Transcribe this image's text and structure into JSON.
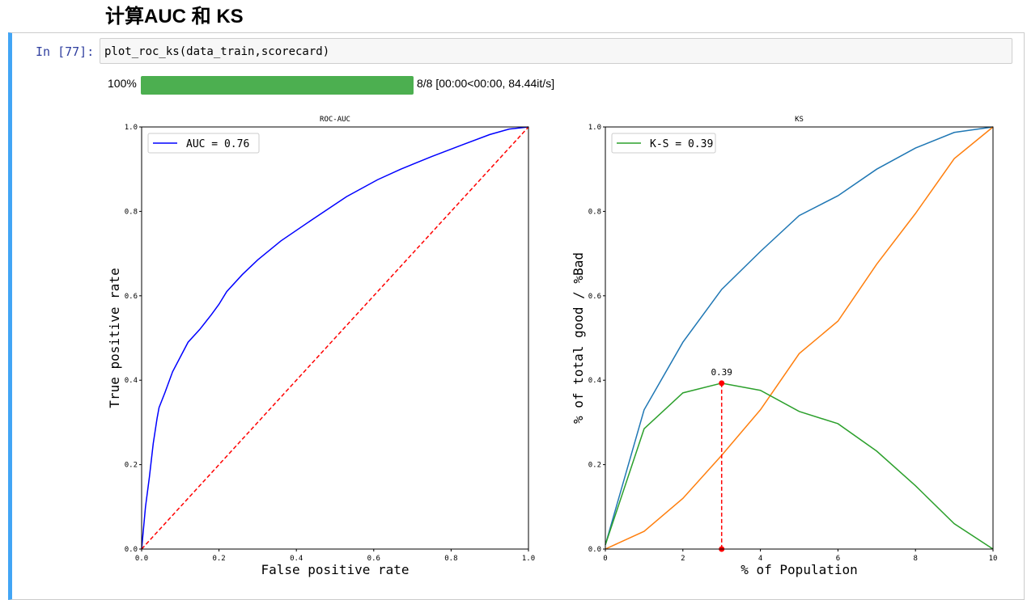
{
  "heading": "计算AUC 和 KS",
  "cell": {
    "prompt": "In  [77]:",
    "code": "plot_roc_ks(data_train,scorecard)"
  },
  "progress": {
    "percent_label": "100%",
    "value": 1.0,
    "status": "8/8 [00:00<00:00, 84.44it/s]",
    "color": "#4caf50"
  },
  "chart_data": [
    {
      "type": "line",
      "title": "ROC-AUC",
      "xlabel": "False positive rate",
      "ylabel": "True positive rate",
      "xlim": [
        0,
        1
      ],
      "ylim": [
        0,
        1
      ],
      "xticks": [
        "0.0",
        "0.2",
        "0.4",
        "0.6",
        "0.8",
        "1.0"
      ],
      "yticks": [
        "0.0",
        "0.2",
        "0.4",
        "0.6",
        "0.8",
        "1.0"
      ],
      "legend": "top-left",
      "grid": false,
      "series": [
        {
          "name": "AUC = 0.76",
          "color": "#0000ff",
          "style": "solid",
          "x": [
            0,
            0.01,
            0.02,
            0.03,
            0.04,
            0.045,
            0.06,
            0.08,
            0.1,
            0.12,
            0.15,
            0.18,
            0.2,
            0.22,
            0.26,
            0.3,
            0.36,
            0.44,
            0.53,
            0.61,
            0.67,
            0.75,
            0.83,
            0.9,
            0.95,
            1
          ],
          "y": [
            0,
            0.1,
            0.17,
            0.25,
            0.31,
            0.335,
            0.37,
            0.42,
            0.455,
            0.49,
            0.52,
            0.555,
            0.58,
            0.61,
            0.65,
            0.685,
            0.73,
            0.78,
            0.835,
            0.875,
            0.9,
            0.93,
            0.958,
            0.982,
            0.995,
            1
          ]
        },
        {
          "color": "#ff0000",
          "style": "dashed",
          "x": [
            0,
            1
          ],
          "y": [
            0,
            1
          ]
        }
      ]
    },
    {
      "type": "line",
      "title": "KS",
      "xlabel": "% of Population",
      "ylabel": "% of total good / %Bad",
      "xlim": [
        0,
        10
      ],
      "ylim": [
        0,
        1
      ],
      "xticks": [
        "0",
        "2",
        "4",
        "6",
        "8",
        "10"
      ],
      "yticks": [
        "0.0",
        "0.2",
        "0.4",
        "0.6",
        "0.8",
        "1.0"
      ],
      "legend": "top-left",
      "grid": false,
      "x": [
        0,
        1,
        2,
        3,
        4,
        5,
        6,
        7,
        8,
        9,
        10
      ],
      "series": [
        {
          "color": "#1f77b4",
          "values": [
            0.01,
            0.33,
            0.49,
            0.615,
            0.705,
            0.79,
            0.837,
            0.9,
            0.95,
            0.987,
            1
          ]
        },
        {
          "color": "#ff7f0e",
          "values": [
            0,
            0.042,
            0.12,
            0.222,
            0.33,
            0.463,
            0.54,
            0.675,
            0.795,
            0.925,
            1
          ]
        },
        {
          "name": "K-S = 0.39",
          "color": "#2ca02c",
          "values": [
            0.01,
            0.285,
            0.37,
            0.393,
            0.376,
            0.326,
            0.297,
            0.232,
            0.15,
            0.06,
            0
          ]
        }
      ],
      "annotation": {
        "text": "0.39",
        "x": 3,
        "y": 0.393,
        "color": "#ff0000"
      }
    }
  ]
}
